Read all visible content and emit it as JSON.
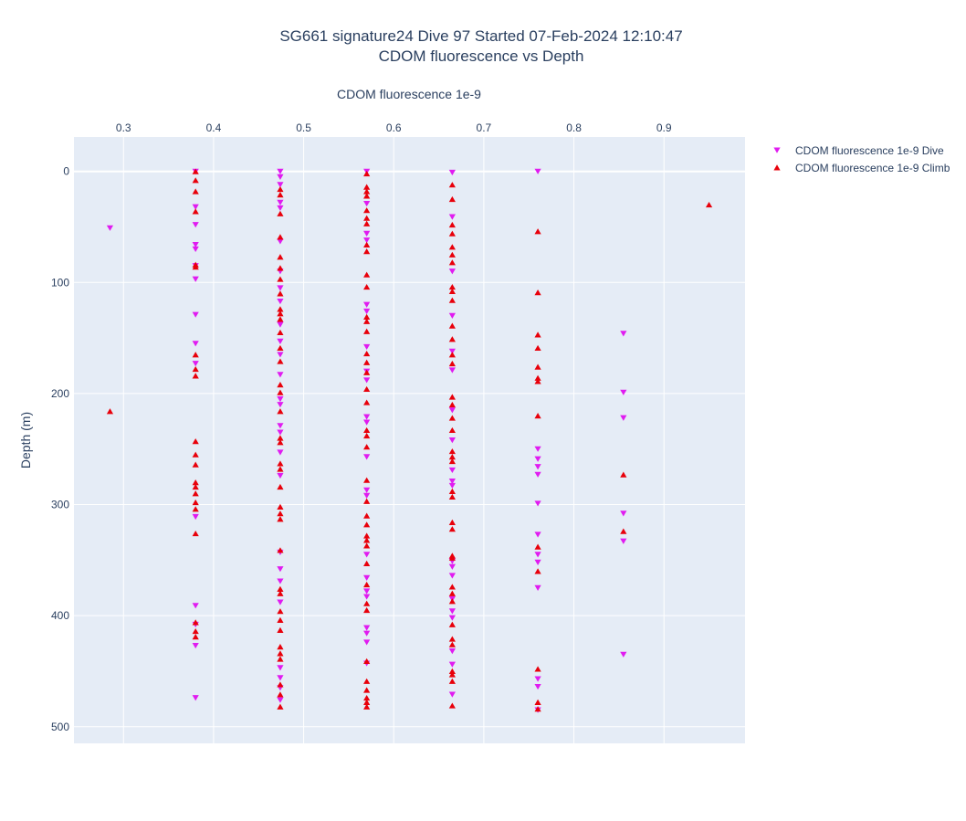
{
  "chart_data": {
    "type": "scatter",
    "title_line1": "SG661 signature24 Dive 97 Started 07-Feb-2024 12:10:47",
    "title_line2": "CDOM fluorescence vs Depth",
    "xlabel": "CDOM fluorescence 1e-9",
    "ylabel": "Depth (m)",
    "x_axis_position": "top",
    "y_axis_reversed": true,
    "xlim": [
      0.245,
      0.99
    ],
    "ylim": [
      -31,
      515
    ],
    "xticks": [
      0.3,
      0.4,
      0.5,
      0.6,
      0.7,
      0.8,
      0.9
    ],
    "xtick_labels": [
      "0.3",
      "0.4",
      "0.5",
      "0.6",
      "0.7",
      "0.8",
      "0.9"
    ],
    "yticks": [
      0,
      100,
      200,
      300,
      400,
      500
    ],
    "ytick_labels": [
      "0",
      "100",
      "200",
      "300",
      "400",
      "500"
    ],
    "grid": true,
    "legend_position": "top-right",
    "series": [
      {
        "name": "CDOM fluorescence 1e-9 Dive",
        "marker": "triangle-down",
        "color": "#e01cf0",
        "points": [
          [
            0.285,
            51
          ],
          [
            0.38,
            0
          ],
          [
            0.38,
            32
          ],
          [
            0.38,
            48
          ],
          [
            0.38,
            66
          ],
          [
            0.38,
            70
          ],
          [
            0.38,
            85
          ],
          [
            0.38,
            97
          ],
          [
            0.38,
            129
          ],
          [
            0.38,
            155
          ],
          [
            0.38,
            173
          ],
          [
            0.38,
            311
          ],
          [
            0.38,
            391
          ],
          [
            0.38,
            408
          ],
          [
            0.38,
            427
          ],
          [
            0.38,
            474
          ],
          [
            0.474,
            0
          ],
          [
            0.474,
            5
          ],
          [
            0.474,
            12
          ],
          [
            0.474,
            28
          ],
          [
            0.474,
            33
          ],
          [
            0.474,
            63
          ],
          [
            0.474,
            90
          ],
          [
            0.474,
            105
          ],
          [
            0.474,
            117
          ],
          [
            0.474,
            138
          ],
          [
            0.474,
            153
          ],
          [
            0.474,
            165
          ],
          [
            0.474,
            183
          ],
          [
            0.474,
            205
          ],
          [
            0.474,
            210
          ],
          [
            0.474,
            229
          ],
          [
            0.474,
            235
          ],
          [
            0.474,
            253
          ],
          [
            0.474,
            274
          ],
          [
            0.474,
            343
          ],
          [
            0.474,
            358
          ],
          [
            0.474,
            369
          ],
          [
            0.474,
            388
          ],
          [
            0.474,
            447
          ],
          [
            0.474,
            456
          ],
          [
            0.474,
            465
          ],
          [
            0.474,
            476
          ],
          [
            0.57,
            0
          ],
          [
            0.57,
            29
          ],
          [
            0.57,
            56
          ],
          [
            0.57,
            62
          ],
          [
            0.57,
            120
          ],
          [
            0.57,
            126
          ],
          [
            0.57,
            158
          ],
          [
            0.57,
            180
          ],
          [
            0.57,
            188
          ],
          [
            0.57,
            221
          ],
          [
            0.57,
            226
          ],
          [
            0.57,
            257
          ],
          [
            0.57,
            287
          ],
          [
            0.57,
            292
          ],
          [
            0.57,
            345
          ],
          [
            0.57,
            366
          ],
          [
            0.57,
            378
          ],
          [
            0.57,
            383
          ],
          [
            0.57,
            411
          ],
          [
            0.57,
            416
          ],
          [
            0.57,
            424
          ],
          [
            0.57,
            443
          ],
          [
            0.665,
            1
          ],
          [
            0.665,
            41
          ],
          [
            0.665,
            90
          ],
          [
            0.665,
            130
          ],
          [
            0.665,
            162
          ],
          [
            0.665,
            179
          ],
          [
            0.665,
            215
          ],
          [
            0.665,
            242
          ],
          [
            0.665,
            269
          ],
          [
            0.665,
            279
          ],
          [
            0.665,
            283
          ],
          [
            0.665,
            351
          ],
          [
            0.665,
            356
          ],
          [
            0.665,
            364
          ],
          [
            0.665,
            385
          ],
          [
            0.665,
            396
          ],
          [
            0.665,
            402
          ],
          [
            0.665,
            432
          ],
          [
            0.665,
            444
          ],
          [
            0.665,
            471
          ],
          [
            0.76,
            0
          ],
          [
            0.76,
            250
          ],
          [
            0.76,
            259
          ],
          [
            0.76,
            266
          ],
          [
            0.76,
            273
          ],
          [
            0.76,
            299
          ],
          [
            0.76,
            327
          ],
          [
            0.76,
            345
          ],
          [
            0.76,
            352
          ],
          [
            0.76,
            375
          ],
          [
            0.76,
            457
          ],
          [
            0.76,
            464
          ],
          [
            0.76,
            485
          ],
          [
            0.855,
            146
          ],
          [
            0.855,
            199
          ],
          [
            0.855,
            222
          ],
          [
            0.855,
            308
          ],
          [
            0.855,
            333
          ],
          [
            0.855,
            435
          ]
        ]
      },
      {
        "name": "CDOM fluorescence 1e-9 Climb",
        "marker": "triangle-up",
        "color": "#e8000b",
        "points": [
          [
            0.285,
            216
          ],
          [
            0.38,
            0
          ],
          [
            0.38,
            8
          ],
          [
            0.38,
            18
          ],
          [
            0.38,
            36
          ],
          [
            0.38,
            84
          ],
          [
            0.38,
            86
          ],
          [
            0.38,
            165
          ],
          [
            0.38,
            178
          ],
          [
            0.38,
            184
          ],
          [
            0.38,
            243
          ],
          [
            0.38,
            255
          ],
          [
            0.38,
            264
          ],
          [
            0.38,
            280
          ],
          [
            0.38,
            284
          ],
          [
            0.38,
            290
          ],
          [
            0.38,
            298
          ],
          [
            0.38,
            304
          ],
          [
            0.38,
            326
          ],
          [
            0.38,
            406
          ],
          [
            0.38,
            414
          ],
          [
            0.38,
            419
          ],
          [
            0.474,
            16
          ],
          [
            0.474,
            21
          ],
          [
            0.474,
            38
          ],
          [
            0.474,
            59
          ],
          [
            0.474,
            77
          ],
          [
            0.474,
            87
          ],
          [
            0.474,
            97
          ],
          [
            0.474,
            110
          ],
          [
            0.474,
            124
          ],
          [
            0.474,
            128
          ],
          [
            0.474,
            133
          ],
          [
            0.474,
            145
          ],
          [
            0.474,
            159
          ],
          [
            0.474,
            171
          ],
          [
            0.474,
            192
          ],
          [
            0.474,
            199
          ],
          [
            0.474,
            216
          ],
          [
            0.474,
            240
          ],
          [
            0.474,
            244
          ],
          [
            0.474,
            263
          ],
          [
            0.474,
            268
          ],
          [
            0.474,
            284
          ],
          [
            0.474,
            302
          ],
          [
            0.474,
            308
          ],
          [
            0.474,
            313
          ],
          [
            0.474,
            341
          ],
          [
            0.474,
            376
          ],
          [
            0.474,
            380
          ],
          [
            0.474,
            396
          ],
          [
            0.474,
            404
          ],
          [
            0.474,
            413
          ],
          [
            0.474,
            428
          ],
          [
            0.474,
            434
          ],
          [
            0.474,
            439
          ],
          [
            0.474,
            462
          ],
          [
            0.474,
            471
          ],
          [
            0.474,
            482
          ],
          [
            0.57,
            2
          ],
          [
            0.57,
            14
          ],
          [
            0.57,
            18
          ],
          [
            0.57,
            22
          ],
          [
            0.57,
            35
          ],
          [
            0.57,
            42
          ],
          [
            0.57,
            47
          ],
          [
            0.57,
            66
          ],
          [
            0.57,
            72
          ],
          [
            0.57,
            93
          ],
          [
            0.57,
            104
          ],
          [
            0.57,
            131
          ],
          [
            0.57,
            135
          ],
          [
            0.57,
            144
          ],
          [
            0.57,
            164
          ],
          [
            0.57,
            172
          ],
          [
            0.57,
            181
          ],
          [
            0.57,
            196
          ],
          [
            0.57,
            208
          ],
          [
            0.57,
            233
          ],
          [
            0.57,
            238
          ],
          [
            0.57,
            248
          ],
          [
            0.57,
            278
          ],
          [
            0.57,
            297
          ],
          [
            0.57,
            310
          ],
          [
            0.57,
            318
          ],
          [
            0.57,
            328
          ],
          [
            0.57,
            332
          ],
          [
            0.57,
            337
          ],
          [
            0.57,
            353
          ],
          [
            0.57,
            372
          ],
          [
            0.57,
            389
          ],
          [
            0.57,
            395
          ],
          [
            0.57,
            441
          ],
          [
            0.57,
            459
          ],
          [
            0.57,
            467
          ],
          [
            0.57,
            474
          ],
          [
            0.57,
            478
          ],
          [
            0.57,
            482
          ],
          [
            0.665,
            12
          ],
          [
            0.665,
            25
          ],
          [
            0.665,
            48
          ],
          [
            0.665,
            56
          ],
          [
            0.665,
            68
          ],
          [
            0.665,
            75
          ],
          [
            0.665,
            82
          ],
          [
            0.665,
            104
          ],
          [
            0.665,
            108
          ],
          [
            0.665,
            116
          ],
          [
            0.665,
            139
          ],
          [
            0.665,
            151
          ],
          [
            0.665,
            165
          ],
          [
            0.665,
            173
          ],
          [
            0.665,
            203
          ],
          [
            0.665,
            210
          ],
          [
            0.665,
            222
          ],
          [
            0.665,
            233
          ],
          [
            0.665,
            252
          ],
          [
            0.665,
            257
          ],
          [
            0.665,
            261
          ],
          [
            0.665,
            288
          ],
          [
            0.665,
            293
          ],
          [
            0.665,
            316
          ],
          [
            0.665,
            322
          ],
          [
            0.665,
            346
          ],
          [
            0.665,
            348
          ],
          [
            0.665,
            374
          ],
          [
            0.665,
            380
          ],
          [
            0.665,
            387
          ],
          [
            0.665,
            408
          ],
          [
            0.665,
            421
          ],
          [
            0.665,
            426
          ],
          [
            0.665,
            450
          ],
          [
            0.665,
            453
          ],
          [
            0.665,
            459
          ],
          [
            0.665,
            481
          ],
          [
            0.76,
            54
          ],
          [
            0.76,
            109
          ],
          [
            0.76,
            147
          ],
          [
            0.76,
            159
          ],
          [
            0.76,
            176
          ],
          [
            0.76,
            186
          ],
          [
            0.76,
            189
          ],
          [
            0.76,
            220
          ],
          [
            0.76,
            338
          ],
          [
            0.76,
            360
          ],
          [
            0.76,
            448
          ],
          [
            0.76,
            478
          ],
          [
            0.76,
            484
          ],
          [
            0.855,
            273
          ],
          [
            0.855,
            324
          ],
          [
            0.95,
            30
          ]
        ]
      }
    ]
  }
}
